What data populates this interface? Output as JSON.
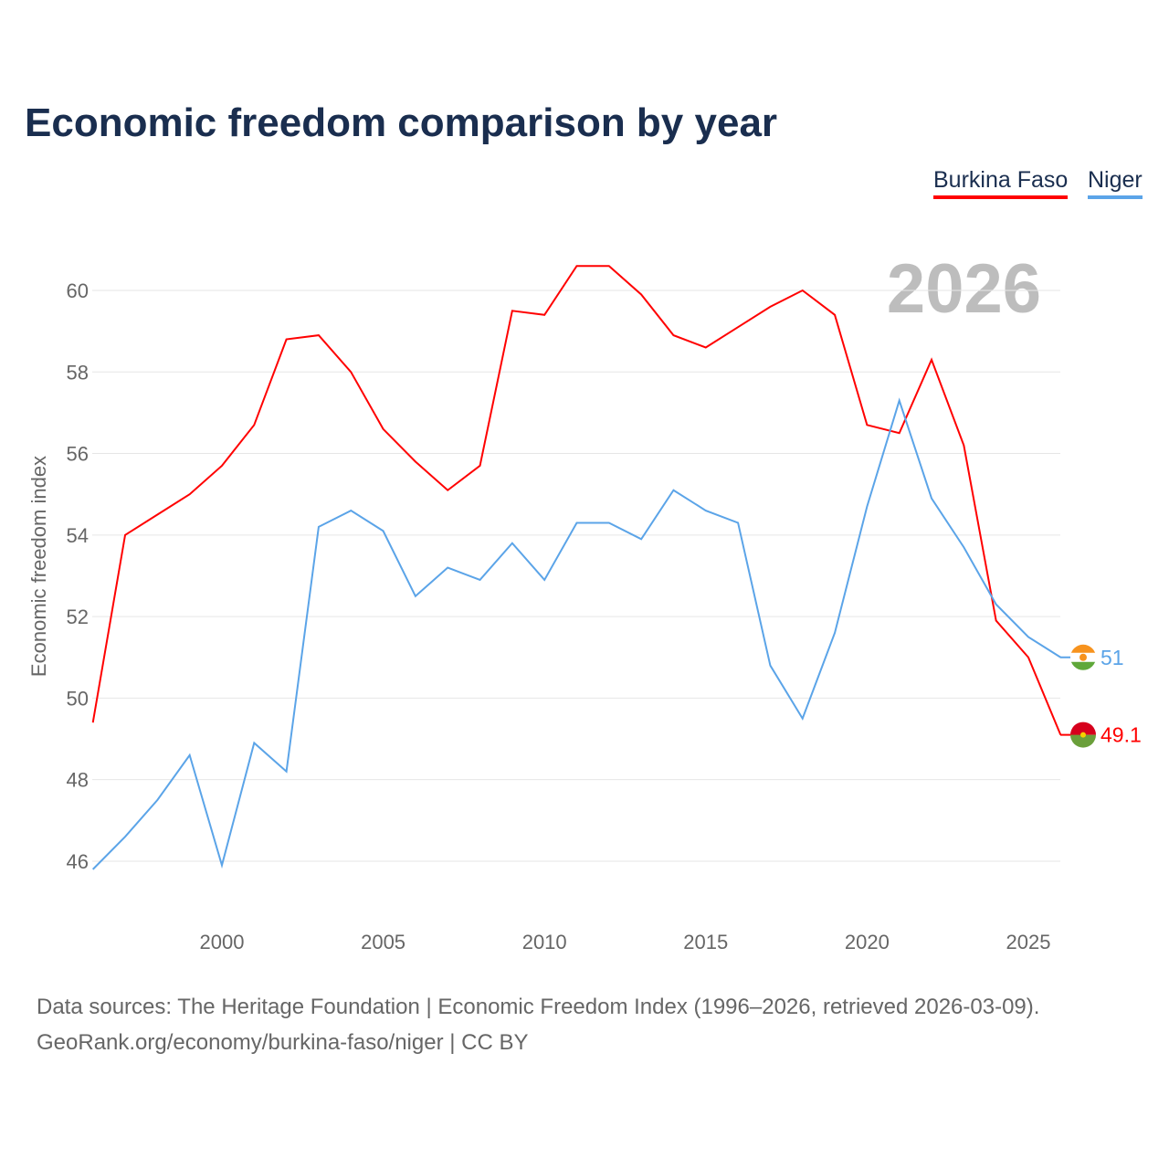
{
  "title": "Economic freedom comparison by year",
  "legend": [
    {
      "label": "Burkina Faso",
      "color": "#ff0000"
    },
    {
      "label": "Niger",
      "color": "#5ba4e8"
    }
  ],
  "year_label": "2026",
  "footer": {
    "line1": "Data sources: The Heritage Foundation | Economic Freedom Index (1996–2026, retrieved 2026-03-09).",
    "line2": "GeoRank.org/economy/burkina-faso/niger | CC BY"
  },
  "chart_data": {
    "type": "line",
    "title": "Economic freedom comparison by year",
    "xlabel": "",
    "ylabel": "Economic freedom index",
    "xlim": [
      1996,
      2026
    ],
    "ylim": [
      45,
      61
    ],
    "xticks": [
      2000,
      2005,
      2010,
      2015,
      2020,
      2025
    ],
    "yticks": [
      46,
      48,
      50,
      52,
      54,
      56,
      58,
      60
    ],
    "grid": true,
    "legend_position": "top-right",
    "x": [
      1996,
      1997,
      1998,
      1999,
      2000,
      2001,
      2002,
      2003,
      2004,
      2005,
      2006,
      2007,
      2008,
      2009,
      2010,
      2011,
      2012,
      2013,
      2014,
      2015,
      2016,
      2017,
      2018,
      2019,
      2020,
      2021,
      2022,
      2023,
      2024,
      2025,
      2026
    ],
    "series": [
      {
        "name": "Burkina Faso",
        "color": "#ff0000",
        "end_label": "49.1",
        "values": [
          49.4,
          54.0,
          54.5,
          55.0,
          55.7,
          56.7,
          58.8,
          58.9,
          58.0,
          56.6,
          55.8,
          55.1,
          55.7,
          59.5,
          59.4,
          60.6,
          60.6,
          59.9,
          58.9,
          58.6,
          59.1,
          59.6,
          60.0,
          59.4,
          56.7,
          56.5,
          58.3,
          56.2,
          51.9,
          51.0,
          49.1
        ]
      },
      {
        "name": "Niger",
        "color": "#5ba4e8",
        "end_label": "51",
        "values": [
          45.8,
          46.6,
          47.5,
          48.6,
          45.9,
          48.9,
          48.2,
          54.2,
          54.6,
          54.1,
          52.5,
          53.2,
          52.9,
          53.8,
          52.9,
          54.3,
          54.3,
          53.9,
          55.1,
          54.6,
          54.3,
          50.8,
          49.5,
          51.6,
          54.7,
          57.3,
          54.9,
          53.7,
          52.3,
          51.5,
          51.0
        ]
      }
    ]
  }
}
